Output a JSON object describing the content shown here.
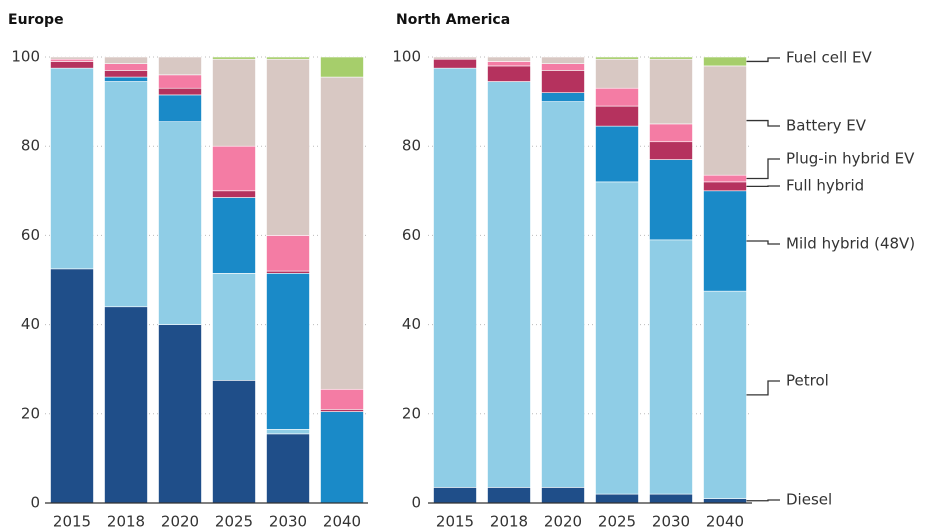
{
  "chart_data": [
    {
      "type": "stacked_bar",
      "title": "Europe",
      "categories": [
        "2015",
        "2018",
        "2020",
        "2025",
        "2030",
        "2040"
      ],
      "series": [
        {
          "name": "Diesel",
          "color": "#1f4e89",
          "values": [
            52.5,
            44,
            40,
            27.5,
            15.5,
            0
          ]
        },
        {
          "name": "Petrol",
          "color": "#8fcde6",
          "values": [
            45,
            50.5,
            45.5,
            24,
            1,
            0
          ]
        },
        {
          "name": "Mild hybrid (48V)",
          "color": "#1a8ac8",
          "values": [
            0,
            1,
            6,
            17,
            35,
            20.5
          ]
        },
        {
          "name": "Full hybrid",
          "color": "#b5325e",
          "values": [
            1.5,
            1.5,
            1.5,
            1.5,
            0.5,
            0.5
          ]
        },
        {
          "name": "Plug-in hybrid EV",
          "color": "#f47ca4",
          "values": [
            0.5,
            1.5,
            3,
            10,
            8,
            4.5
          ]
        },
        {
          "name": "Battery EV",
          "color": "#d8c8c3",
          "values": [
            0.5,
            1.5,
            4,
            19.5,
            39.5,
            70
          ]
        },
        {
          "name": "Fuel cell EV",
          "color": "#a6ce6b",
          "values": [
            0,
            0,
            0,
            0.5,
            0.5,
            4.5
          ]
        }
      ],
      "ylim": [
        0,
        100
      ],
      "yticks": [
        0,
        20,
        40,
        60,
        80,
        100
      ],
      "grid": true
    },
    {
      "type": "stacked_bar",
      "title": "North America",
      "categories": [
        "2015",
        "2018",
        "2020",
        "2025",
        "2030",
        "2040"
      ],
      "series": [
        {
          "name": "Diesel",
          "color": "#1f4e89",
          "values": [
            3.5,
            3.5,
            3.5,
            2,
            2,
            1
          ]
        },
        {
          "name": "Petrol",
          "color": "#8fcde6",
          "values": [
            94,
            91,
            86.5,
            70,
            57,
            46.5
          ]
        },
        {
          "name": "Mild hybrid (48V)",
          "color": "#1a8ac8",
          "values": [
            0,
            0,
            2,
            12.5,
            18,
            22.5
          ]
        },
        {
          "name": "Full hybrid",
          "color": "#b5325e",
          "values": [
            2,
            3.5,
            5,
            4.5,
            4,
            2
          ]
        },
        {
          "name": "Plug-in hybrid EV",
          "color": "#f47ca4",
          "values": [
            0,
            1,
            1.5,
            4,
            4,
            1.5
          ]
        },
        {
          "name": "Battery EV",
          "color": "#d8c8c3",
          "values": [
            0.5,
            1,
            1.5,
            6.5,
            14.5,
            24.5
          ]
        },
        {
          "name": "Fuel cell EV",
          "color": "#a6ce6b",
          "values": [
            0,
            0,
            0,
            0.5,
            0.5,
            2
          ]
        }
      ],
      "ylim": [
        0,
        100
      ],
      "yticks": [
        0,
        20,
        40,
        60,
        80,
        100
      ],
      "grid": true
    }
  ]
}
